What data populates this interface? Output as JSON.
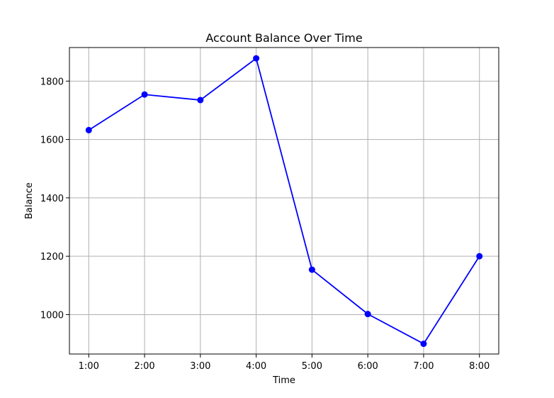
{
  "chart_data": {
    "type": "line",
    "title": "Account Balance Over Time",
    "xlabel": "Time",
    "ylabel": "Balance",
    "categories": [
      "1:00",
      "2:00",
      "3:00",
      "4:00",
      "5:00",
      "6:00",
      "7:00",
      "8:00"
    ],
    "series": [
      {
        "values": [
          1632,
          1754,
          1735,
          1878,
          1154,
          1002,
          900,
          1200
        ],
        "color": "#0000ff",
        "marker": "circle"
      }
    ],
    "y_ticks": [
      1000,
      1200,
      1400,
      1600,
      1800
    ],
    "ylim": [
      865,
      1915
    ],
    "grid": true
  }
}
